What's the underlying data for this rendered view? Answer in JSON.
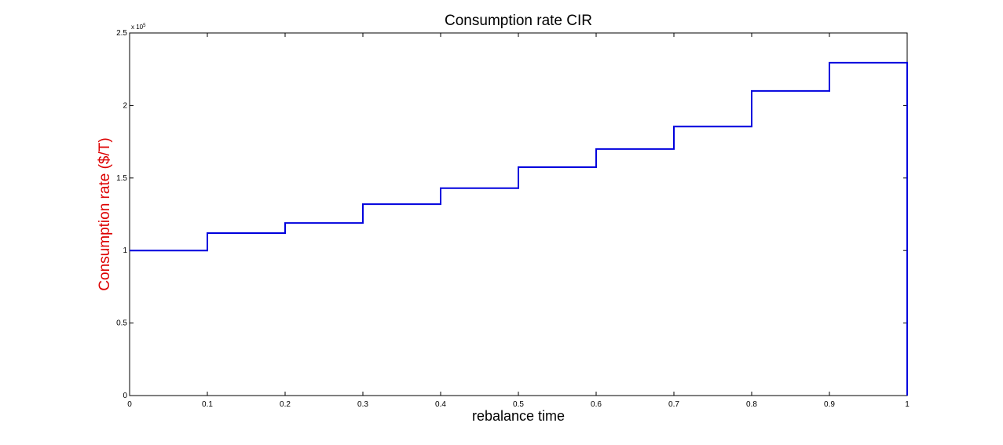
{
  "chart_data": {
    "type": "line",
    "step": "post",
    "title": "Consumption rate CIR",
    "xlabel": "rebalance time",
    "ylabel": "Consumption rate ($/T)",
    "ylabel_color": "#dd0000",
    "line_color": "#0000dd",
    "y_exponent_label": "x 10",
    "y_exponent_power": "5",
    "xlim": [
      0,
      1
    ],
    "ylim": [
      0,
      2.5
    ],
    "xticks": [
      0,
      0.1,
      0.2,
      0.3,
      0.4,
      0.5,
      0.6,
      0.7,
      0.8,
      0.9,
      1
    ],
    "xtick_labels": [
      "0",
      "0.1",
      "0.2",
      "0.3",
      "0.4",
      "0.5",
      "0.6",
      "0.7",
      "0.8",
      "0.9",
      "1"
    ],
    "yticks": [
      0,
      0.5,
      1,
      1.5,
      2,
      2.5
    ],
    "ytick_labels": [
      "0",
      "0.5",
      "1",
      "1.5",
      "2",
      "2.5"
    ],
    "grid": false,
    "series": [
      {
        "x": [
          0,
          0.1,
          0.2,
          0.3,
          0.4,
          0.5,
          0.6,
          0.7,
          0.8,
          0.9,
          1,
          1
        ],
        "y": [
          1.0,
          1.12,
          1.19,
          1.32,
          1.43,
          1.575,
          1.7,
          1.855,
          2.1,
          2.295,
          2.295,
          0
        ]
      }
    ]
  }
}
